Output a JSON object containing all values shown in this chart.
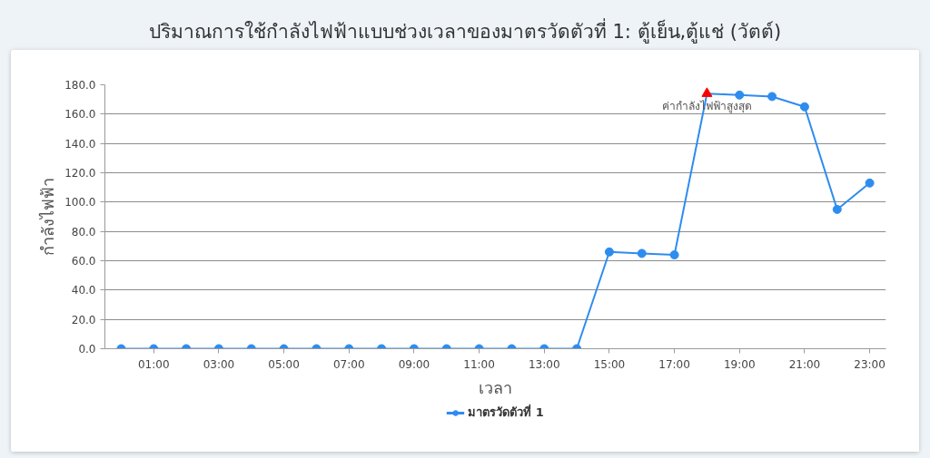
{
  "chart_data": {
    "type": "line",
    "title": "ปริมาณการใช้กำลังไฟฟ้าแบบช่วงเวลาของมาตรวัดตัวที่ 1: ตู้เย็น,ตู้แช่ (วัตต์)",
    "xlabel": "เวลา",
    "ylabel": "กำลังไฟฟ้า",
    "x": [
      0,
      1,
      2,
      3,
      4,
      5,
      6,
      7,
      8,
      9,
      10,
      11,
      12,
      13,
      14,
      15,
      16,
      17,
      18,
      19,
      20,
      21,
      22,
      23
    ],
    "series": [
      {
        "name": "มาตรวัดตัวที่ 1",
        "color": "#2d8cf0",
        "values": [
          0,
          0,
          0,
          0,
          0,
          0,
          0,
          0,
          0,
          0,
          0,
          0,
          0,
          0,
          0,
          66,
          65,
          64,
          174,
          173,
          172,
          165,
          95,
          113
        ],
        "colors": [
          "#2d8cf0",
          "#2d8cf0",
          "#2d8cf0",
          "#2d8cf0",
          "#2d8cf0",
          "#2d8cf0",
          "#2d8cf0",
          "#2d8cf0",
          "#2d8cf0",
          "#2d8cf0",
          "#2d8cf0",
          "#2d8cf0",
          "#2d8cf0",
          "#2d8cf0",
          "#2d8cf0",
          "#2d8cf0",
          "#2d8cf0",
          "#2d8cf0",
          "#ff0000",
          "#2d8cf0",
          "#2d8cf0",
          "#2d8cf0",
          "#2d8cf0",
          "#2d8cf0"
        ],
        "marker": [
          "circle",
          "circle",
          "circle",
          "circle",
          "circle",
          "circle",
          "circle",
          "circle",
          "circle",
          "circle",
          "circle",
          "circle",
          "circle",
          "circle",
          "circle",
          "circle",
          "circle",
          "circle",
          "triangle",
          "circle",
          "circle",
          "circle",
          "circle",
          "circle"
        ]
      }
    ],
    "xlim": [
      -0.5,
      23.5
    ],
    "xticks": [
      {
        "value": 1,
        "label": "01:00"
      },
      {
        "value": 3,
        "label": "03:00"
      },
      {
        "value": 5,
        "label": "05:00"
      },
      {
        "value": 7,
        "label": "07:00"
      },
      {
        "value": 9,
        "label": "09:00"
      },
      {
        "value": 11,
        "label": "11:00"
      },
      {
        "value": 13,
        "label": "13:00"
      },
      {
        "value": 15,
        "label": "15:00"
      },
      {
        "value": 17,
        "label": "17:00"
      },
      {
        "value": 19,
        "label": "19:00"
      },
      {
        "value": 21,
        "label": "21:00"
      },
      {
        "value": 23,
        "label": "23:00"
      }
    ],
    "ylim": [
      0,
      180
    ],
    "yticks": [
      {
        "value": 0,
        "label": "0.0"
      },
      {
        "value": 20,
        "label": "20.0"
      },
      {
        "value": 40,
        "label": "40.0"
      },
      {
        "value": 60,
        "label": "60.0"
      },
      {
        "value": 80,
        "label": "80.0"
      },
      {
        "value": 100,
        "label": "100.0"
      },
      {
        "value": 120,
        "label": "120.0"
      },
      {
        "value": 140,
        "label": "140.0"
      },
      {
        "value": 160,
        "label": "160.0"
      },
      {
        "value": 180,
        "label": "180.0"
      }
    ],
    "grid": "y",
    "legend": "bottom",
    "line_style": "solid",
    "annotations": [
      {
        "text": "ค่ากำลังไฟฟ้าสูงสุด",
        "x": 18,
        "y": 174
      }
    ]
  }
}
